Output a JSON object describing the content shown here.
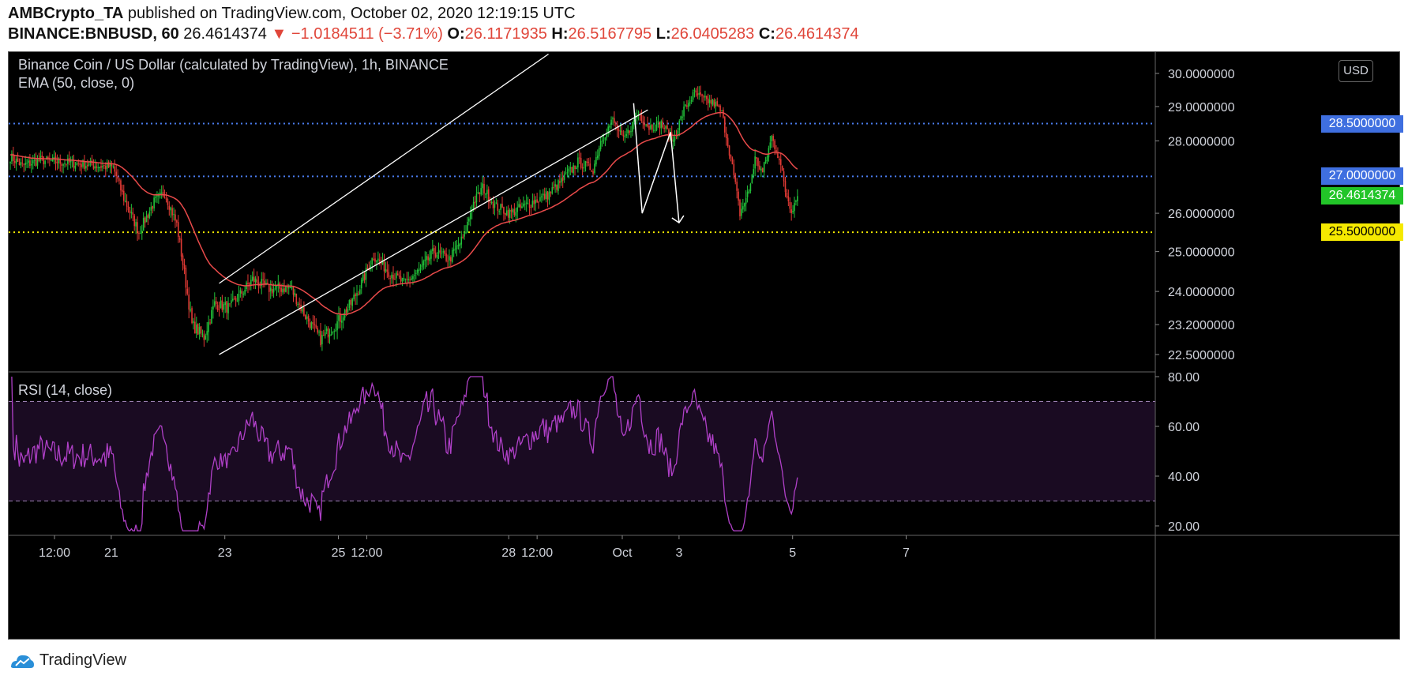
{
  "header": {
    "author": "AMBCrypto_TA",
    "published": "published on TradingView.com, October 02, 2020 12:19:15 UTC",
    "symbol": "BINANCE:BNBUSD, 60",
    "last": "26.4614374",
    "change": "▼ −1.0184511 (−3.71%)",
    "o_label": "O:",
    "o_value": "26.1171935",
    "h_label": "H:",
    "h_value": "26.5167795",
    "l_label": "L:",
    "l_value": "26.0405283",
    "c_label": "C:",
    "c_value": "26.4614374"
  },
  "chart_title": "Binance Coin / US Dollar (calculated by TradingView), 1h, BINANCE",
  "ema_label": "EMA (50, close, 0)",
  "rsi_label": "RSI (14, close)",
  "unit_button": "USD",
  "price_tags": {
    "resistance_high": "28.5000000",
    "resistance_mid": "27.0000000",
    "last_price": "26.4614374",
    "support": "25.5000000"
  },
  "brand": "TradingView",
  "colors": {
    "bull": "#26a69a",
    "bull_candle": "#22c33a",
    "bear_candle": "#e23a35",
    "ema": "#e84a4a",
    "rsi": "#b040c8",
    "blue_level": "#4a7cf0",
    "yellow_level": "#f5e900",
    "last_tag": "#2ec42e"
  },
  "chart_data": {
    "type": "candlestick",
    "price_axis_ticks": [
      "30.0000000",
      "29.0000000",
      "28.0000000",
      "26.0000000",
      "25.0000000",
      "24.0000000",
      "23.2000000",
      "22.5000000"
    ],
    "rsi_axis_ticks": [
      "80.00",
      "60.00",
      "40.00",
      "20.00"
    ],
    "x_tick_labels": [
      "12:00",
      "21",
      "23",
      "25",
      "12:00",
      "28",
      "12:00",
      "Oct",
      "3",
      "5",
      "7"
    ],
    "horizontal_levels": [
      {
        "value": 28.5,
        "color": "#4a7cf0",
        "style": "dotted"
      },
      {
        "value": 27.0,
        "color": "#4a7cf0",
        "style": "dotted"
      },
      {
        "value": 25.5,
        "color": "#f5e900",
        "style": "dotted"
      }
    ],
    "rsi_bands": [
      70,
      30
    ],
    "ema_period": 50,
    "rsi_period": 14,
    "anchors": [
      [
        0,
        27.55
      ],
      [
        8,
        27.3
      ],
      [
        20,
        27.45
      ],
      [
        45,
        27.35
      ],
      [
        68,
        27.25
      ],
      [
        75,
        26.4
      ],
      [
        85,
        25.5
      ],
      [
        95,
        26.3
      ],
      [
        102,
        26.55
      ],
      [
        110,
        25.7
      ],
      [
        120,
        23.2
      ],
      [
        128,
        22.9
      ],
      [
        135,
        23.7
      ],
      [
        145,
        23.6
      ],
      [
        160,
        24.3
      ],
      [
        172,
        24.05
      ],
      [
        185,
        24.1
      ],
      [
        195,
        23.4
      ],
      [
        205,
        22.85
      ],
      [
        215,
        23.2
      ],
      [
        225,
        23.7
      ],
      [
        232,
        24.2
      ],
      [
        240,
        24.9
      ],
      [
        250,
        24.5
      ],
      [
        260,
        24.2
      ],
      [
        270,
        24.5
      ],
      [
        280,
        25.0
      ],
      [
        290,
        24.8
      ],
      [
        300,
        25.4
      ],
      [
        305,
        26.2
      ],
      [
        312,
        26.7
      ],
      [
        320,
        26.2
      ],
      [
        330,
        26.0
      ],
      [
        345,
        26.3
      ],
      [
        355,
        26.5
      ],
      [
        365,
        26.9
      ],
      [
        375,
        27.4
      ],
      [
        385,
        27.2
      ],
      [
        390,
        28.0
      ],
      [
        398,
        28.6
      ],
      [
        405,
        28.0
      ],
      [
        415,
        28.8
      ],
      [
        422,
        28.4
      ],
      [
        430,
        28.5
      ],
      [
        438,
        28.0
      ],
      [
        445,
        28.9
      ],
      [
        452,
        29.4
      ],
      [
        458,
        29.2
      ],
      [
        465,
        29.1
      ],
      [
        470,
        28.8
      ],
      [
        476,
        27.5
      ],
      [
        482,
        26.0
      ],
      [
        488,
        26.6
      ],
      [
        492,
        27.5
      ],
      [
        497,
        27.1
      ],
      [
        503,
        28.1
      ],
      [
        508,
        27.5
      ],
      [
        512,
        26.6
      ],
      [
        516,
        26.1
      ],
      [
        520,
        26.46
      ]
    ],
    "pattern_overlays": {
      "channel_upper": [
        [
          23.4,
          24.2
        ],
        [
          29.2,
          30.6
        ]
      ],
      "channel_lower": [
        [
          23.4,
          22.5
        ],
        [
          30.95,
          28.9
        ]
      ],
      "zigzag": [
        [
          30.7,
          29.1
        ],
        [
          30.85,
          26.0
        ],
        [
          31.35,
          28.25
        ],
        [
          31.5,
          25.75
        ]
      ]
    }
  }
}
